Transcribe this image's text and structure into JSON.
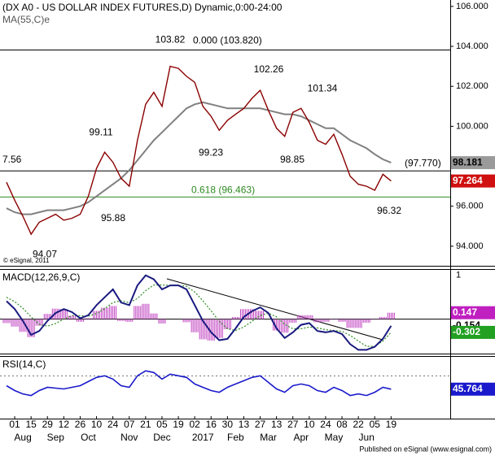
{
  "chart_data": {
    "type": "line",
    "title": "(DX A0 - US DOLLAR INDEX FUTURES,D) Dynamic,0:00-24:00",
    "indicator_label": "MA(55,C)e",
    "copyright": "© eSignal, 2011",
    "footer": "Published on eSignal (www.esignal.com)",
    "categories": [
      null,
      "01",
      null,
      "15",
      null,
      "29",
      null,
      "12",
      null,
      "26",
      null,
      "10",
      null,
      "24",
      null,
      "07",
      null,
      "21",
      null,
      "05",
      null,
      "19",
      null,
      "02",
      null,
      "16",
      null,
      "30",
      null,
      "13",
      null,
      "27",
      null,
      "13",
      null,
      "27",
      null,
      "10",
      null,
      "24",
      null,
      "08",
      null,
      "22",
      null,
      "05",
      null,
      "19"
    ],
    "months": [
      null,
      null,
      "Aug",
      null,
      null,
      null,
      "Sep",
      null,
      null,
      null,
      "Oct",
      null,
      null,
      null,
      null,
      "Nov",
      null,
      null,
      null,
      "Dec",
      null,
      null,
      null,
      null,
      "2017",
      null,
      null,
      null,
      "Feb",
      null,
      null,
      null,
      "Mar",
      null,
      null,
      null,
      "Apr",
      null,
      null,
      null,
      "May",
      null,
      null,
      null,
      "Jun",
      null,
      null,
      null
    ],
    "ylim": [
      93.02,
      106.32
    ],
    "yticks": [
      {
        "value": 106,
        "label": "106.000"
      },
      {
        "value": 104,
        "label": "104.000"
      },
      {
        "value": 102,
        "label": "102.000"
      },
      {
        "value": 100,
        "label": "100.000"
      },
      {
        "value": 96,
        "label": "96.000"
      },
      {
        "value": 94,
        "label": "94.000"
      }
    ],
    "price": {
      "color": "#8b0000",
      "last": 97.264,
      "values": [
        97.2,
        96.3,
        95.5,
        94.6,
        95.2,
        95.4,
        95.6,
        95.3,
        95.4,
        95.6,
        96.5,
        97.9,
        98.7,
        98.2,
        97.4,
        97.0,
        99.3,
        101.1,
        101.7,
        101.0,
        103.0,
        102.9,
        102.5,
        102.2,
        101.0,
        100.5,
        99.8,
        100.3,
        100.6,
        100.9,
        101.4,
        101.8,
        100.8,
        99.9,
        99.5,
        100.7,
        100.9,
        100.2,
        99.3,
        99.1,
        99.6,
        98.6,
        97.5,
        97.1,
        97.0,
        96.8,
        97.6,
        97.264
      ]
    },
    "ma": {
      "color": "#808080",
      "last": 98.181,
      "values": [
        95.9,
        95.7,
        95.6,
        95.6,
        95.7,
        95.8,
        95.8,
        95.8,
        95.9,
        96.0,
        96.2,
        96.5,
        96.8,
        97.1,
        97.4,
        97.8,
        98.3,
        98.8,
        99.3,
        99.7,
        100.1,
        100.5,
        100.9,
        101.1,
        101.2,
        101.1,
        101.0,
        100.9,
        100.9,
        100.9,
        100.9,
        100.9,
        100.8,
        100.7,
        100.6,
        100.6,
        100.5,
        100.3,
        100.1,
        99.9,
        99.9,
        99.6,
        99.3,
        99.1,
        98.9,
        98.6,
        98.35,
        98.181
      ]
    },
    "hlines": [
      {
        "value": 103.82,
        "label": "0.000 (103.820)",
        "color": "#000000"
      },
      {
        "value": 97.77,
        "label": "(97.770)",
        "color": "#000000"
      },
      {
        "value": 96.463,
        "label": "0.618 (96.463)",
        "color": "#2e8b22"
      }
    ],
    "side_note": "7.56",
    "pivots": [
      103.82,
      102.26,
      101.34,
      99.11,
      99.23,
      98.85,
      95.88,
      94.07,
      96.32
    ],
    "macd": {
      "title": "MACD(12,26,9,C)",
      "ylim": [
        -0.786,
        1.125
      ],
      "yticks": [
        1,
        0
      ],
      "line": {
        "color": "#1a1a80",
        "last": -0.154,
        "values": [
          0.41,
          0.23,
          -0.04,
          -0.36,
          -0.27,
          -0.04,
          0.14,
          0.23,
          0.16,
          0.02,
          0.09,
          0.32,
          0.5,
          0.68,
          0.38,
          0.32,
          0.77,
          1.0,
          0.91,
          0.68,
          0.77,
          0.77,
          0.68,
          0.32,
          -0.04,
          -0.3,
          -0.48,
          -0.45,
          -0.21,
          0.05,
          0.18,
          0.27,
          0.14,
          -0.21,
          -0.43,
          -0.3,
          -0.13,
          -0.09,
          -0.27,
          -0.3,
          -0.27,
          -0.34,
          -0.57,
          -0.7,
          -0.7,
          -0.63,
          -0.45,
          -0.154
        ]
      },
      "signal": {
        "color": "#2e8b22",
        "last": -0.302,
        "values": [
          0.5,
          0.4,
          0.25,
          0.05,
          -0.12,
          -0.16,
          -0.1,
          0.0,
          0.08,
          0.08,
          0.07,
          0.13,
          0.24,
          0.38,
          0.42,
          0.38,
          0.47,
          0.65,
          0.78,
          0.78,
          0.77,
          0.77,
          0.75,
          0.62,
          0.42,
          0.19,
          -0.05,
          -0.22,
          -0.26,
          -0.18,
          -0.05,
          0.08,
          0.14,
          0.05,
          -0.12,
          -0.22,
          -0.22,
          -0.18,
          -0.2,
          -0.24,
          -0.26,
          -0.28,
          -0.37,
          -0.5,
          -0.62,
          -0.62,
          -0.5,
          -0.302
        ]
      },
      "histogram": {
        "color": "#c040c0",
        "last": 0.147,
        "values": [
          -0.09,
          -0.17,
          -0.29,
          -0.41,
          -0.15,
          0.12,
          0.24,
          0.23,
          0.08,
          -0.06,
          0.02,
          0.19,
          0.26,
          0.3,
          -0.04,
          -0.06,
          0.3,
          0.35,
          0.13,
          -0.1,
          0,
          0,
          -0.07,
          -0.3,
          -0.46,
          -0.49,
          -0.43,
          -0.23,
          0.05,
          0.23,
          0.23,
          0.19,
          0,
          -0.26,
          -0.31,
          -0.08,
          0.09,
          0.09,
          -0.07,
          -0.06,
          -0.01,
          -0.06,
          -0.2,
          -0.2,
          -0.08,
          -0.01,
          0.05,
          0.147
        ]
      }
    },
    "rsi": {
      "title": "RSI(14,C)",
      "ylim": [
        10,
        85
      ],
      "color": "#1a1acc",
      "last": 45.764,
      "values": [
        50,
        44,
        40,
        38,
        44,
        48,
        47,
        46,
        48,
        50,
        55,
        60,
        62,
        58,
        50,
        48,
        62,
        68,
        66,
        58,
        64,
        62,
        60,
        52,
        48,
        44,
        42,
        48,
        52,
        56,
        60,
        62,
        54,
        46,
        42,
        50,
        52,
        50,
        44,
        42,
        48,
        44,
        38,
        40,
        38,
        42,
        48,
        45.764
      ]
    }
  }
}
